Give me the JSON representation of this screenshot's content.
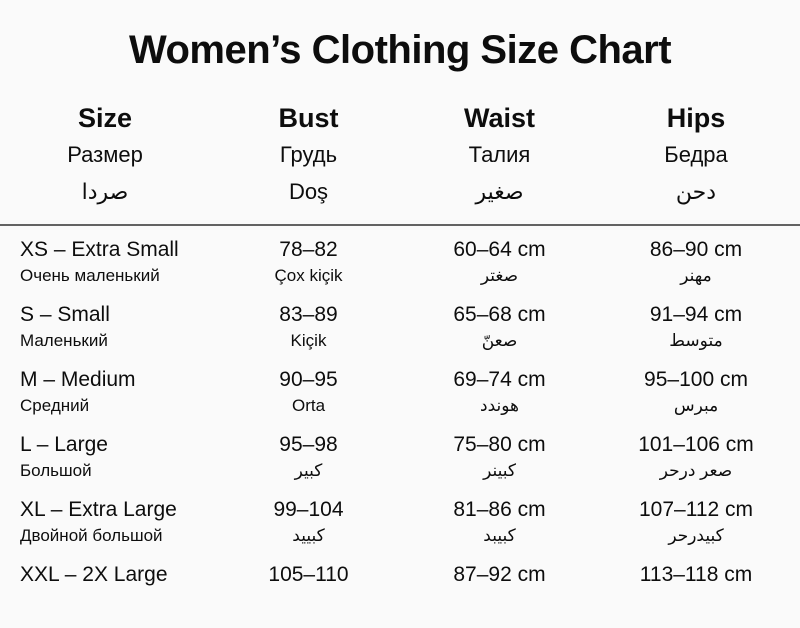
{
  "title": "Women’s Clothing Size Chart",
  "colors": {
    "background": "#fafafa",
    "text": "#0d0d0d",
    "divider": "#626262"
  },
  "table": {
    "columns": [
      {
        "label": "Size",
        "translation_ru": "Размер",
        "translation_other": "صردا"
      },
      {
        "label": "Bust",
        "translation_ru": "Грудь",
        "translation_other": "Doş"
      },
      {
        "label": "Waist",
        "translation_ru": "Талия",
        "translation_other": "صغير"
      },
      {
        "label": "Hips",
        "translation_ru": "Бедра",
        "translation_other": "دحن"
      }
    ],
    "rows": [
      {
        "size": {
          "value": "XS – Extra Small",
          "sub": "Очень маленький"
        },
        "bust": {
          "value": "78–82",
          "sub": "Çox kiçik"
        },
        "waist": {
          "value": "60–64 cm",
          "sub": "صغتر"
        },
        "hips": {
          "value": "86–90 cm",
          "sub": "مهنر"
        }
      },
      {
        "size": {
          "value": "S – Small",
          "sub": "Маленький"
        },
        "bust": {
          "value": "83–89",
          "sub": "Kiçik"
        },
        "waist": {
          "value": "65–68 cm",
          "sub": "صعنّ"
        },
        "hips": {
          "value": "91–94 cm",
          "sub": "متوسط"
        }
      },
      {
        "size": {
          "value": "M – Medium",
          "sub": "Средний"
        },
        "bust": {
          "value": "90–95",
          "sub": "Orta"
        },
        "waist": {
          "value": "69–74 cm",
          "sub": "هوندد"
        },
        "hips": {
          "value": "95–100 cm",
          "sub": "مبرس"
        }
      },
      {
        "size": {
          "value": "L – Large",
          "sub": "Большой"
        },
        "bust": {
          "value": "95–98",
          "sub": "كبير"
        },
        "waist": {
          "value": "75–80 cm",
          "sub": "كبينر"
        },
        "hips": {
          "value": "101–106 cm",
          "sub": "صعر درحر"
        }
      },
      {
        "size": {
          "value": "XL – Extra Large",
          "sub": "Двойной большой"
        },
        "bust": {
          "value": "99–104",
          "sub": "كبييد"
        },
        "waist": {
          "value": "81–86 cm",
          "sub": "كبيبد"
        },
        "hips": {
          "value": "107–112 cm",
          "sub": "كبيدرحر"
        }
      },
      {
        "size": {
          "value": "XXL – 2X Large",
          "sub": ""
        },
        "bust": {
          "value": "105–110",
          "sub": ""
        },
        "waist": {
          "value": "87–92 cm",
          "sub": ""
        },
        "hips": {
          "value": "113–118 cm",
          "sub": ""
        }
      }
    ]
  }
}
